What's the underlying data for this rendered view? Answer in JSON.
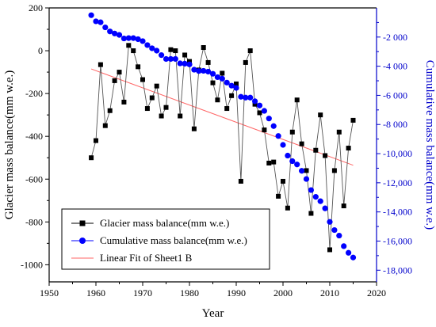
{
  "chart_data": {
    "type": "line",
    "x": [
      1959,
      1960,
      1961,
      1962,
      1963,
      1964,
      1965,
      1966,
      1967,
      1968,
      1969,
      1970,
      1971,
      1972,
      1973,
      1974,
      1975,
      1976,
      1977,
      1978,
      1979,
      1980,
      1981,
      1982,
      1983,
      1984,
      1985,
      1986,
      1987,
      1988,
      1989,
      1990,
      1991,
      1992,
      1993,
      1994,
      1995,
      1996,
      1997,
      1998,
      1999,
      2000,
      2001,
      2002,
      2003,
      2004,
      2005,
      2006,
      2007,
      2008,
      2009,
      2010,
      2011,
      2012,
      2013,
      2014,
      2015
    ],
    "series": [
      {
        "name": "Glacier mass balance(mm w.e.)",
        "axis": "left",
        "color": "#000000",
        "marker": "square",
        "values": [
          -500,
          -420,
          -65,
          -350,
          -280,
          -140,
          -100,
          -240,
          25,
          0,
          -75,
          -135,
          -270,
          -220,
          -165,
          -305,
          -265,
          5,
          0,
          -305,
          -20,
          -50,
          -365,
          -90,
          15,
          -55,
          -150,
          -230,
          -105,
          -270,
          -210,
          -155,
          -610,
          -55,
          0,
          -250,
          -290,
          -370,
          -525,
          -520,
          -680,
          -610,
          -735,
          -380,
          -230,
          -435,
          -560,
          -760,
          -465,
          -300,
          -490,
          -930,
          -560,
          -380,
          -725,
          -455,
          -325
        ]
      },
      {
        "name": "Cumulative mass balance(mm w.e.)",
        "axis": "right",
        "color": "#0000ff",
        "marker": "circle",
        "values": [
          -500,
          -920,
          -985,
          -1335,
          -1615,
          -1755,
          -1855,
          -2095,
          -2070,
          -2070,
          -2145,
          -2280,
          -2550,
          -2770,
          -2935,
          -3240,
          -3505,
          -3500,
          -3500,
          -3805,
          -3825,
          -3875,
          -4240,
          -4330,
          -4315,
          -4370,
          -4520,
          -4750,
          -4855,
          -5125,
          -5335,
          -5490,
          -6100,
          -6155,
          -6155,
          -6405,
          -6695,
          -7065,
          -7590,
          -8110,
          -8790,
          -9400,
          -10135,
          -10515,
          -10745,
          -11180,
          -11740,
          -12500,
          -12965,
          -13265,
          -13755,
          -14685,
          -15245,
          -15625,
          -16350,
          -16805,
          -17130
        ]
      },
      {
        "name": "Linear Fit of Sheet1 B",
        "axis": "left",
        "color": "#ff6666",
        "marker": "none",
        "x": [
          1959,
          2015
        ],
        "values": [
          -85,
          -535
        ]
      }
    ],
    "xlabel": "Year",
    "ylabel_left": "Glacier mass balance(mm w.e.)",
    "ylabel_right": "Cumulative mass balance(mm w.e.)",
    "xlim": [
      1950,
      2020
    ],
    "ylim_left": [
      -1080,
      200
    ],
    "ylim_right": [
      -18800,
      0
    ],
    "x_ticks": [
      "1950",
      "1960",
      "1970",
      "1980",
      "1990",
      "2000",
      "2010",
      "2020"
    ],
    "y_left_ticks": [
      "200",
      "0",
      "-200",
      "-400",
      "-600",
      "-800",
      "-1000"
    ],
    "y_right_ticks": [
      "-2 000",
      "-4 000",
      "-6 000",
      "-8 000",
      "-10,000",
      "-12,000",
      "-14,000",
      "-16,000",
      "-18,000"
    ],
    "grid": false,
    "legend_position": "bottom-left"
  }
}
